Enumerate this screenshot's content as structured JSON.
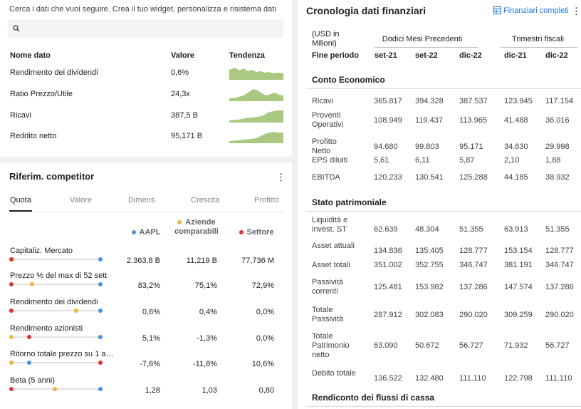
{
  "metrics": {
    "hint": "Cerca i dati che vuoi seguire. Crea il tuo widget, personalizza e risistema dati",
    "headers": {
      "name": "Nome dato",
      "value": "Valore",
      "trend": "Tendenza"
    },
    "rows": [
      {
        "name": "Rendimento dei dividendi",
        "value": "0,6%"
      },
      {
        "name": "Ratio Prezzo/Utile",
        "value": "24,3x"
      },
      {
        "name": "Ricavi",
        "value": "387,5 B"
      },
      {
        "name": "Reddito netto",
        "value": "95,171 B"
      }
    ],
    "trend_color": "#a8c97f"
  },
  "competitors": {
    "title": "Riferim. competitor",
    "tabs": [
      "Quota",
      "Valore",
      "Dimens.",
      "Crescita",
      "Profitto"
    ],
    "columns": [
      {
        "label": "AAPL",
        "color": "#4a90d9"
      },
      {
        "label": "Aziende comparabili",
        "color": "#f0b43c"
      },
      {
        "label": "Settore",
        "color": "#e03131"
      }
    ],
    "rows": [
      {
        "name": "Capitaliz. Mercato",
        "aapl": "2.363,8 B",
        "comp": "11,219 B",
        "sector": "77,736 M",
        "pos": {
          "sector": 0.0,
          "comp": 0.01,
          "aapl": 1.0
        }
      },
      {
        "name": "Prezzo % del max di 52 sett",
        "aapl": "83,2%",
        "comp": "75,1%",
        "sector": "72,9%",
        "pos": {
          "sector": 0.0,
          "comp": 0.23,
          "aapl": 1.0
        }
      },
      {
        "name": "Rendimento dei dividendi",
        "aapl": "0,6%",
        "comp": "0,4%",
        "sector": "0,0%",
        "pos": {
          "sector": 0.0,
          "comp": 0.73,
          "aapl": 1.0
        }
      },
      {
        "name": "Rendimento azionisti",
        "aapl": "5,1%",
        "comp": "-1,3%",
        "sector": "0,0%",
        "pos": {
          "comp": 0.0,
          "sector": 0.2,
          "aapl": 1.0
        }
      },
      {
        "name": "Ritorno totale prezzo su 1 a…",
        "aapl": "-7,6%",
        "comp": "-11,8%",
        "sector": "10,6%",
        "pos": {
          "comp": 0.0,
          "aapl": 0.2,
          "sector": 1.0
        }
      },
      {
        "name": "Beta (5 anni)",
        "aapl": "1,28",
        "comp": "1,03",
        "sector": "0,80",
        "pos": {
          "sector": 0.0,
          "comp": 0.49,
          "aapl": 1.0
        }
      }
    ]
  },
  "financials": {
    "title": "Cronologia dati finanziari",
    "link": "Finanziari completi",
    "unit": "(USD in Milioni)",
    "group_ttm": "Dodici Mesi Precedenti",
    "group_q": "Trimestri fiscali",
    "period_label": "Fine periodo",
    "periods": [
      "set-21",
      "set-22",
      "dic-22",
      "dic-21",
      "dic-22"
    ],
    "sections": [
      {
        "title": "Conto Economico",
        "rows": [
          {
            "label": "Ricavi",
            "values": [
              "365.817",
              "394.328",
              "387.537",
              "123.945",
              "117.154"
            ]
          },
          {
            "label": "Proventi Operativi",
            "values": [
              "108.949",
              "119.437",
              "113.965",
              "41.488",
              "36.016"
            ]
          },
          {
            "label": "Profitto Netto",
            "values": [
              "94.680",
              "99.803",
              "95.171",
              "34.630",
              "29.998"
            ]
          },
          {
            "label": "EPS diluiti",
            "values": [
              "5,61",
              "6,11",
              "5,87",
              "2,10",
              "1,88"
            ]
          },
          {
            "label": "EBITDA",
            "values": [
              "120.233",
              "130.541",
              "125.288",
              "44.185",
              "38.932"
            ]
          }
        ]
      },
      {
        "title": "Stato patrimoniale",
        "rows": [
          {
            "label": "Liquidità e invest. ST",
            "values": [
              "62.639",
              "48.304",
              "51.355",
              "63.913",
              "51.355"
            ]
          },
          {
            "label": "Asset attuali",
            "values": [
              "134.836",
              "135.405",
              "128.777",
              "153.154",
              "128.777"
            ]
          },
          {
            "label": "Asset totali",
            "values": [
              "351.002",
              "352.755",
              "346.747",
              "381.191",
              "346.747"
            ]
          },
          {
            "label": "Passività correnti",
            "values": [
              "125.481",
              "153.982",
              "137.286",
              "147.574",
              "137.286"
            ]
          },
          {
            "label": "Totale Passività",
            "values": [
              "287.912",
              "302.083",
              "290.020",
              "309.259",
              "290.020"
            ]
          },
          {
            "label": "Totale Patrimonio netto",
            "values": [
              "63.090",
              "50.672",
              "56.727",
              "71.932",
              "56.727"
            ]
          },
          {
            "label": "Debito totale",
            "values": [
              "136.522",
              "132.480",
              "111.110",
              "122.798",
              "111.110"
            ]
          }
        ]
      },
      {
        "title": "Rendiconto dei flussi di cassa",
        "rows": []
      }
    ]
  }
}
